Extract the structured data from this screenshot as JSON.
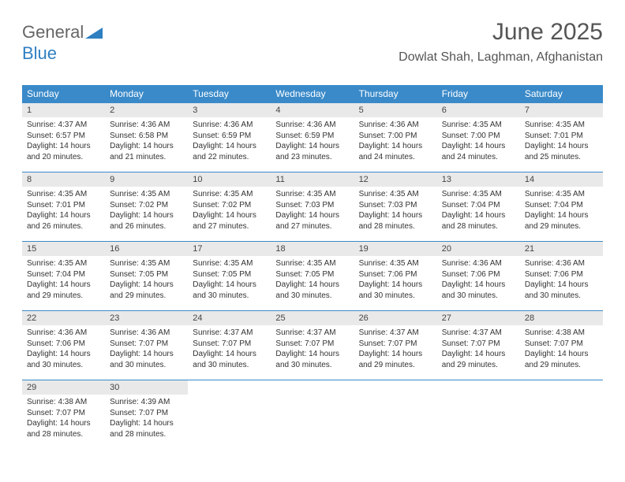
{
  "logo": {
    "part1": "General",
    "part2": "Blue"
  },
  "title": "June 2025",
  "location": "Dowlat Shah, Laghman, Afghanistan",
  "weekdays": [
    "Sunday",
    "Monday",
    "Tuesday",
    "Wednesday",
    "Thursday",
    "Friday",
    "Saturday"
  ],
  "colors": {
    "header_bg": "#3a8ac9",
    "header_text": "#ffffff",
    "daynum_bg": "#e9e9e9",
    "border": "#3a8ac9",
    "logo_gray": "#666666",
    "logo_blue": "#2f7fc1",
    "title_color": "#555555"
  },
  "typography": {
    "title_fontsize": 30,
    "location_fontsize": 16,
    "weekday_fontsize": 12,
    "daynum_fontsize": 11,
    "body_fontsize": 10
  },
  "days": [
    {
      "n": "1",
      "sr": "Sunrise: 4:37 AM",
      "ss": "Sunset: 6:57 PM",
      "d1": "Daylight: 14 hours",
      "d2": "and 20 minutes."
    },
    {
      "n": "2",
      "sr": "Sunrise: 4:36 AM",
      "ss": "Sunset: 6:58 PM",
      "d1": "Daylight: 14 hours",
      "d2": "and 21 minutes."
    },
    {
      "n": "3",
      "sr": "Sunrise: 4:36 AM",
      "ss": "Sunset: 6:59 PM",
      "d1": "Daylight: 14 hours",
      "d2": "and 22 minutes."
    },
    {
      "n": "4",
      "sr": "Sunrise: 4:36 AM",
      "ss": "Sunset: 6:59 PM",
      "d1": "Daylight: 14 hours",
      "d2": "and 23 minutes."
    },
    {
      "n": "5",
      "sr": "Sunrise: 4:36 AM",
      "ss": "Sunset: 7:00 PM",
      "d1": "Daylight: 14 hours",
      "d2": "and 24 minutes."
    },
    {
      "n": "6",
      "sr": "Sunrise: 4:35 AM",
      "ss": "Sunset: 7:00 PM",
      "d1": "Daylight: 14 hours",
      "d2": "and 24 minutes."
    },
    {
      "n": "7",
      "sr": "Sunrise: 4:35 AM",
      "ss": "Sunset: 7:01 PM",
      "d1": "Daylight: 14 hours",
      "d2": "and 25 minutes."
    },
    {
      "n": "8",
      "sr": "Sunrise: 4:35 AM",
      "ss": "Sunset: 7:01 PM",
      "d1": "Daylight: 14 hours",
      "d2": "and 26 minutes."
    },
    {
      "n": "9",
      "sr": "Sunrise: 4:35 AM",
      "ss": "Sunset: 7:02 PM",
      "d1": "Daylight: 14 hours",
      "d2": "and 26 minutes."
    },
    {
      "n": "10",
      "sr": "Sunrise: 4:35 AM",
      "ss": "Sunset: 7:02 PM",
      "d1": "Daylight: 14 hours",
      "d2": "and 27 minutes."
    },
    {
      "n": "11",
      "sr": "Sunrise: 4:35 AM",
      "ss": "Sunset: 7:03 PM",
      "d1": "Daylight: 14 hours",
      "d2": "and 27 minutes."
    },
    {
      "n": "12",
      "sr": "Sunrise: 4:35 AM",
      "ss": "Sunset: 7:03 PM",
      "d1": "Daylight: 14 hours",
      "d2": "and 28 minutes."
    },
    {
      "n": "13",
      "sr": "Sunrise: 4:35 AM",
      "ss": "Sunset: 7:04 PM",
      "d1": "Daylight: 14 hours",
      "d2": "and 28 minutes."
    },
    {
      "n": "14",
      "sr": "Sunrise: 4:35 AM",
      "ss": "Sunset: 7:04 PM",
      "d1": "Daylight: 14 hours",
      "d2": "and 29 minutes."
    },
    {
      "n": "15",
      "sr": "Sunrise: 4:35 AM",
      "ss": "Sunset: 7:04 PM",
      "d1": "Daylight: 14 hours",
      "d2": "and 29 minutes."
    },
    {
      "n": "16",
      "sr": "Sunrise: 4:35 AM",
      "ss": "Sunset: 7:05 PM",
      "d1": "Daylight: 14 hours",
      "d2": "and 29 minutes."
    },
    {
      "n": "17",
      "sr": "Sunrise: 4:35 AM",
      "ss": "Sunset: 7:05 PM",
      "d1": "Daylight: 14 hours",
      "d2": "and 30 minutes."
    },
    {
      "n": "18",
      "sr": "Sunrise: 4:35 AM",
      "ss": "Sunset: 7:05 PM",
      "d1": "Daylight: 14 hours",
      "d2": "and 30 minutes."
    },
    {
      "n": "19",
      "sr": "Sunrise: 4:35 AM",
      "ss": "Sunset: 7:06 PM",
      "d1": "Daylight: 14 hours",
      "d2": "and 30 minutes."
    },
    {
      "n": "20",
      "sr": "Sunrise: 4:36 AM",
      "ss": "Sunset: 7:06 PM",
      "d1": "Daylight: 14 hours",
      "d2": "and 30 minutes."
    },
    {
      "n": "21",
      "sr": "Sunrise: 4:36 AM",
      "ss": "Sunset: 7:06 PM",
      "d1": "Daylight: 14 hours",
      "d2": "and 30 minutes."
    },
    {
      "n": "22",
      "sr": "Sunrise: 4:36 AM",
      "ss": "Sunset: 7:06 PM",
      "d1": "Daylight: 14 hours",
      "d2": "and 30 minutes."
    },
    {
      "n": "23",
      "sr": "Sunrise: 4:36 AM",
      "ss": "Sunset: 7:07 PM",
      "d1": "Daylight: 14 hours",
      "d2": "and 30 minutes."
    },
    {
      "n": "24",
      "sr": "Sunrise: 4:37 AM",
      "ss": "Sunset: 7:07 PM",
      "d1": "Daylight: 14 hours",
      "d2": "and 30 minutes."
    },
    {
      "n": "25",
      "sr": "Sunrise: 4:37 AM",
      "ss": "Sunset: 7:07 PM",
      "d1": "Daylight: 14 hours",
      "d2": "and 30 minutes."
    },
    {
      "n": "26",
      "sr": "Sunrise: 4:37 AM",
      "ss": "Sunset: 7:07 PM",
      "d1": "Daylight: 14 hours",
      "d2": "and 29 minutes."
    },
    {
      "n": "27",
      "sr": "Sunrise: 4:37 AM",
      "ss": "Sunset: 7:07 PM",
      "d1": "Daylight: 14 hours",
      "d2": "and 29 minutes."
    },
    {
      "n": "28",
      "sr": "Sunrise: 4:38 AM",
      "ss": "Sunset: 7:07 PM",
      "d1": "Daylight: 14 hours",
      "d2": "and 29 minutes."
    },
    {
      "n": "29",
      "sr": "Sunrise: 4:38 AM",
      "ss": "Sunset: 7:07 PM",
      "d1": "Daylight: 14 hours",
      "d2": "and 28 minutes."
    },
    {
      "n": "30",
      "sr": "Sunrise: 4:39 AM",
      "ss": "Sunset: 7:07 PM",
      "d1": "Daylight: 14 hours",
      "d2": "and 28 minutes."
    }
  ]
}
